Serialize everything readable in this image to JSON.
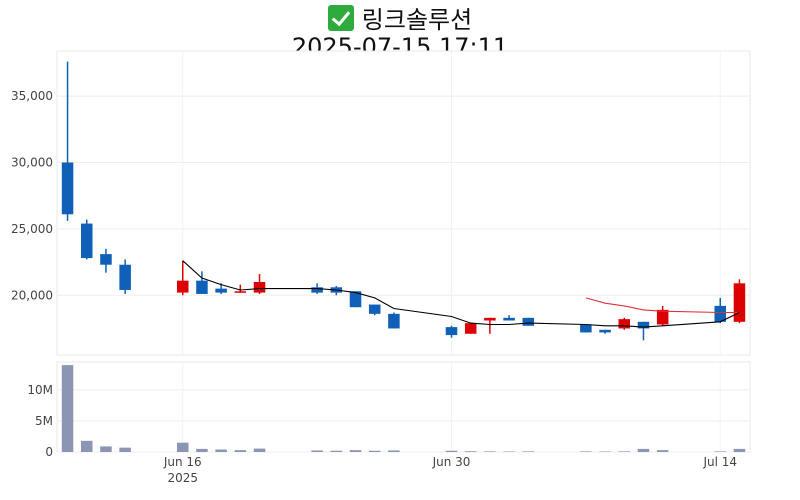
{
  "title": {
    "icon": "check-mark-icon",
    "name": "링크솔루션",
    "datetime": "2025-07-15 17:11"
  },
  "colors": {
    "up": "#dd0000",
    "down": "#1060b8",
    "volume": "#8c96b4",
    "ma_short": "#000000",
    "ma_long": "#e0303a"
  },
  "chart_data": {
    "type": "candlestick",
    "x_ticks": [
      {
        "date": "2025-06-16",
        "label": "Jun 16",
        "sublabel": "2025"
      },
      {
        "date": "2025-06-30",
        "label": "Jun 30",
        "sublabel": ""
      },
      {
        "date": "2025-07-14",
        "label": "Jul 14",
        "sublabel": ""
      }
    ],
    "price_axis": {
      "range": [
        15500,
        38400
      ],
      "ticks": [
        20000,
        25000,
        30000,
        35000
      ],
      "tick_labels": [
        "20,000",
        "25,000",
        "30,000",
        "35,000"
      ]
    },
    "volume_axis": {
      "range": [
        0,
        14500000
      ],
      "ticks": [
        0,
        5000000,
        10000000
      ],
      "tick_labels": [
        "0",
        "5M",
        "10M"
      ]
    },
    "candles": [
      {
        "date": "2025-06-10",
        "open": 30000,
        "high": 37600,
        "low": 25600,
        "close": 26100,
        "volume": 14000000
      },
      {
        "date": "2025-06-11",
        "open": 25400,
        "high": 25700,
        "low": 22700,
        "close": 22800,
        "volume": 1800000
      },
      {
        "date": "2025-06-12",
        "open": 23100,
        "high": 23500,
        "low": 21700,
        "close": 22300,
        "volume": 900000
      },
      {
        "date": "2025-06-13",
        "open": 22300,
        "high": 22700,
        "low": 20100,
        "close": 20400,
        "volume": 700000
      },
      {
        "date": "2025-06-16",
        "open": 20200,
        "high": 22600,
        "low": 20000,
        "close": 21100,
        "volume": 1500000
      },
      {
        "date": "2025-06-17",
        "open": 21100,
        "high": 21800,
        "low": 20100,
        "close": 20100,
        "volume": 500000
      },
      {
        "date": "2025-06-18",
        "open": 20500,
        "high": 20900,
        "low": 20100,
        "close": 20200,
        "volume": 400000
      },
      {
        "date": "2025-06-19",
        "open": 20300,
        "high": 20800,
        "low": 20200,
        "close": 20300,
        "volume": 300000
      },
      {
        "date": "2025-06-20",
        "open": 20200,
        "high": 21600,
        "low": 20100,
        "close": 21000,
        "volume": 550000
      },
      {
        "date": "2025-06-23",
        "open": 20600,
        "high": 20900,
        "low": 20100,
        "close": 20200,
        "volume": 250000
      },
      {
        "date": "2025-06-24",
        "open": 20600,
        "high": 20700,
        "low": 20000,
        "close": 20200,
        "volume": 200000
      },
      {
        "date": "2025-06-25",
        "open": 20300,
        "high": 20300,
        "low": 19100,
        "close": 19100,
        "volume": 300000
      },
      {
        "date": "2025-06-26",
        "open": 19300,
        "high": 19300,
        "low": 18500,
        "close": 18600,
        "volume": 200000
      },
      {
        "date": "2025-06-27",
        "open": 18600,
        "high": 18700,
        "low": 17500,
        "close": 17500,
        "volume": 250000
      },
      {
        "date": "2025-06-30",
        "open": 17600,
        "high": 17700,
        "low": 16800,
        "close": 17000,
        "volume": 200000
      },
      {
        "date": "2025-07-01",
        "open": 17100,
        "high": 17900,
        "low": 17100,
        "close": 17900,
        "volume": 120000
      },
      {
        "date": "2025-07-02",
        "open": 18100,
        "high": 18300,
        "low": 17100,
        "close": 18300,
        "volume": 100000
      },
      {
        "date": "2025-07-03",
        "open": 18300,
        "high": 18500,
        "low": 18100,
        "close": 18100,
        "volume": 80000
      },
      {
        "date": "2025-07-04",
        "open": 18300,
        "high": 18300,
        "low": 17700,
        "close": 17700,
        "volume": 100000
      },
      {
        "date": "2025-07-07",
        "open": 17800,
        "high": 17800,
        "low": 17200,
        "close": 17200,
        "volume": 100000
      },
      {
        "date": "2025-07-08",
        "open": 17400,
        "high": 17400,
        "low": 17100,
        "close": 17200,
        "volume": 80000
      },
      {
        "date": "2025-07-09",
        "open": 17500,
        "high": 18300,
        "low": 17400,
        "close": 18200,
        "volume": 100000
      },
      {
        "date": "2025-07-10",
        "open": 18000,
        "high": 18000,
        "low": 16600,
        "close": 17500,
        "volume": 500000
      },
      {
        "date": "2025-07-11",
        "open": 17800,
        "high": 19200,
        "low": 17700,
        "close": 18900,
        "volume": 300000
      },
      {
        "date": "2025-07-14",
        "open": 19200,
        "high": 19800,
        "low": 17900,
        "close": 18000,
        "volume": 100000
      },
      {
        "date": "2025-07-15",
        "open": 18000,
        "high": 21200,
        "low": 17900,
        "close": 20900,
        "volume": 500000
      }
    ],
    "ma_short": [
      {
        "date": "2025-06-16",
        "value": 22600
      },
      {
        "date": "2025-06-17",
        "value": 21300
      },
      {
        "date": "2025-06-18",
        "value": 20800
      },
      {
        "date": "2025-06-19",
        "value": 20400
      },
      {
        "date": "2025-06-20",
        "value": 20500
      },
      {
        "date": "2025-06-23",
        "value": 20500
      },
      {
        "date": "2025-06-24",
        "value": 20400
      },
      {
        "date": "2025-06-25",
        "value": 20200
      },
      {
        "date": "2025-06-26",
        "value": 19800
      },
      {
        "date": "2025-06-27",
        "value": 19000
      },
      {
        "date": "2025-06-30",
        "value": 18400
      },
      {
        "date": "2025-07-01",
        "value": 17900
      },
      {
        "date": "2025-07-02",
        "value": 17800
      },
      {
        "date": "2025-07-03",
        "value": 17800
      },
      {
        "date": "2025-07-04",
        "value": 17900
      },
      {
        "date": "2025-07-07",
        "value": 17800
      },
      {
        "date": "2025-07-08",
        "value": 17700
      },
      {
        "date": "2025-07-09",
        "value": 17700
      },
      {
        "date": "2025-07-10",
        "value": 17600
      },
      {
        "date": "2025-07-11",
        "value": 17700
      },
      {
        "date": "2025-07-14",
        "value": 18000
      },
      {
        "date": "2025-07-15",
        "value": 18700
      }
    ],
    "ma_long": [
      {
        "date": "2025-07-07",
        "value": 19800
      },
      {
        "date": "2025-07-08",
        "value": 19400
      },
      {
        "date": "2025-07-09",
        "value": 19200
      },
      {
        "date": "2025-07-10",
        "value": 18900
      },
      {
        "date": "2025-07-11",
        "value": 18800
      },
      {
        "date": "2025-07-14",
        "value": 18700
      },
      {
        "date": "2025-07-15",
        "value": 18700
      }
    ]
  }
}
